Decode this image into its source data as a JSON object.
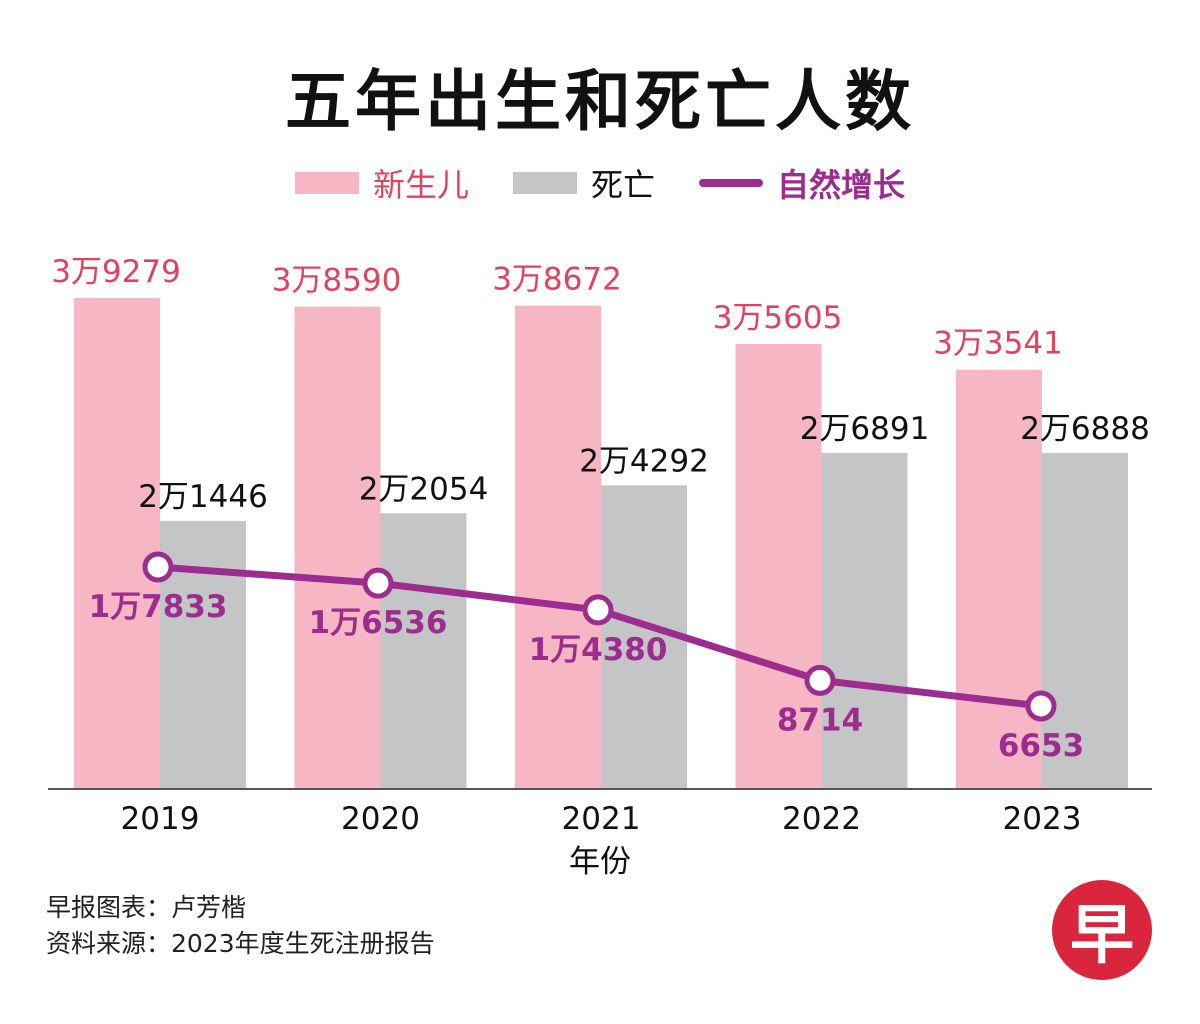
{
  "title": "五年出生和死亡人数",
  "legend": [
    {
      "label": "新生儿",
      "color": "#f7b6c3",
      "text_color": "#e0435f",
      "kind": "bar"
    },
    {
      "label": "死亡",
      "color": "#c4c5c7",
      "text_color": "#111111",
      "kind": "bar"
    },
    {
      "label": "自然增长",
      "color": "#9c2c8e",
      "text_color": "#9c2c8e",
      "kind": "line"
    }
  ],
  "chart_data": {
    "type": "bar",
    "title": "五年出生和死亡人数",
    "xlabel": "年份",
    "ylabel": "",
    "ylim": [
      0,
      40000
    ],
    "categories": [
      "2019",
      "2020",
      "2021",
      "2022",
      "2023"
    ],
    "series": [
      {
        "name": "新生儿",
        "type": "bar",
        "values": [
          39279,
          38590,
          38672,
          35605,
          33541
        ],
        "labels": [
          "3万9279",
          "3万8590",
          "3万8672",
          "3万5605",
          "3万3541"
        ]
      },
      {
        "name": "死亡",
        "type": "bar",
        "values": [
          21446,
          22054,
          24292,
          26891,
          26888
        ],
        "labels": [
          "2万1446",
          "2万2054",
          "2万4292",
          "2万6891",
          "2万6888"
        ]
      },
      {
        "name": "自然增长",
        "type": "line",
        "values": [
          17833,
          16536,
          14380,
          8714,
          6653
        ],
        "labels": [
          "1万7833",
          "1万6536",
          "1万4380",
          "8714",
          "6653"
        ]
      }
    ]
  },
  "colors": {
    "birth_bar": "#f7b6c3",
    "birth_label": "#e0435f",
    "death_bar": "#c4c5c7",
    "death_label": "#111111",
    "growth": "#9c2c8e",
    "axis": "#555555",
    "logo": "#d9263d"
  },
  "credits": {
    "chart_by": "早报图表：卢芳楷",
    "source": "资料来源：2023年度生死注册报告"
  },
  "logo": {
    "text": "早"
  }
}
